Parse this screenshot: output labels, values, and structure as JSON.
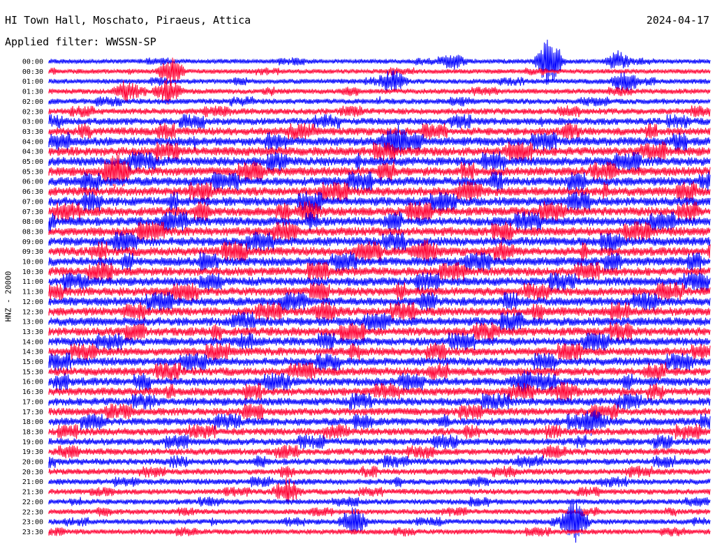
{
  "header": {
    "title": "HI Town Hall, Moschato, Piraeus, Attica",
    "date": "2024-04-17",
    "filter": "Applied filter: WWSSN-SP",
    "channel": "HNZ - 20000"
  },
  "colors": {
    "even_trace": "#0000ff",
    "odd_trace": "#ff0033"
  },
  "chart_data": {
    "type": "line",
    "title": "HI Town Hall, Moschato, Piraeus, Attica",
    "subtitle": "Applied filter: WWSSN-SP",
    "ylabel": "HNZ - 20000",
    "xlabel": "",
    "y_tick_labels": [
      "00:00",
      "00:30",
      "01:00",
      "01:30",
      "02:00",
      "02:30",
      "03:00",
      "03:30",
      "04:00",
      "04:30",
      "05:00",
      "05:30",
      "06:00",
      "06:30",
      "07:00",
      "07:30",
      "08:00",
      "08:30",
      "09:00",
      "09:30",
      "10:00",
      "10:30",
      "11:00",
      "11:30",
      "12:00",
      "12:30",
      "13:00",
      "13:30",
      "14:00",
      "14:30",
      "15:00",
      "15:30",
      "16:00",
      "16:30",
      "17:00",
      "17:30",
      "18:00",
      "18:30",
      "19:00",
      "19:30",
      "20:00",
      "20:30",
      "21:00",
      "21:30",
      "22:00",
      "22:30",
      "23:00",
      "23:30"
    ],
    "trace_color_cycle": [
      "blue",
      "red"
    ],
    "noise_level": [
      0.3,
      0.3,
      0.35,
      0.4,
      0.45,
      0.55,
      0.7,
      0.85,
      0.95,
      1.0,
      1.0,
      1.0,
      1.0,
      1.0,
      1.0,
      1.0,
      1.0,
      1.0,
      1.0,
      1.0,
      1.0,
      0.95,
      0.95,
      0.95,
      0.95,
      0.95,
      0.95,
      0.95,
      0.9,
      0.9,
      0.9,
      0.9,
      0.9,
      0.85,
      0.85,
      0.8,
      0.8,
      0.75,
      0.7,
      0.65,
      0.6,
      0.55,
      0.5,
      0.45,
      0.45,
      0.4,
      0.4,
      0.4
    ],
    "events": [
      {
        "row": 0,
        "t": 0.755,
        "amp": 4.0
      },
      {
        "row": 0,
        "t": 0.61,
        "amp": 1.2
      },
      {
        "row": 0,
        "t": 0.86,
        "amp": 1.5
      },
      {
        "row": 1,
        "t": 0.185,
        "amp": 2.2
      },
      {
        "row": 2,
        "t": 0.52,
        "amp": 1.6
      },
      {
        "row": 2,
        "t": 0.87,
        "amp": 1.6
      },
      {
        "row": 3,
        "t": 0.18,
        "amp": 1.8
      },
      {
        "row": 3,
        "t": 0.115,
        "amp": 1.2
      },
      {
        "row": 8,
        "t": 0.52,
        "amp": 1.8
      },
      {
        "row": 11,
        "t": 0.1,
        "amp": 1.6
      },
      {
        "row": 15,
        "t": 0.39,
        "amp": 1.5
      },
      {
        "row": 19,
        "t": 0.57,
        "amp": 1.6
      },
      {
        "row": 25,
        "t": 0.42,
        "amp": 1.4
      },
      {
        "row": 32,
        "t": 0.72,
        "amp": 1.4
      },
      {
        "row": 33,
        "t": 0.78,
        "amp": 1.4
      },
      {
        "row": 36,
        "t": 0.825,
        "amp": 1.3
      },
      {
        "row": 43,
        "t": 0.36,
        "amp": 2.0
      },
      {
        "row": 46,
        "t": 0.46,
        "amp": 2.2
      },
      {
        "row": 46,
        "t": 0.795,
        "amp": 3.2
      }
    ]
  }
}
